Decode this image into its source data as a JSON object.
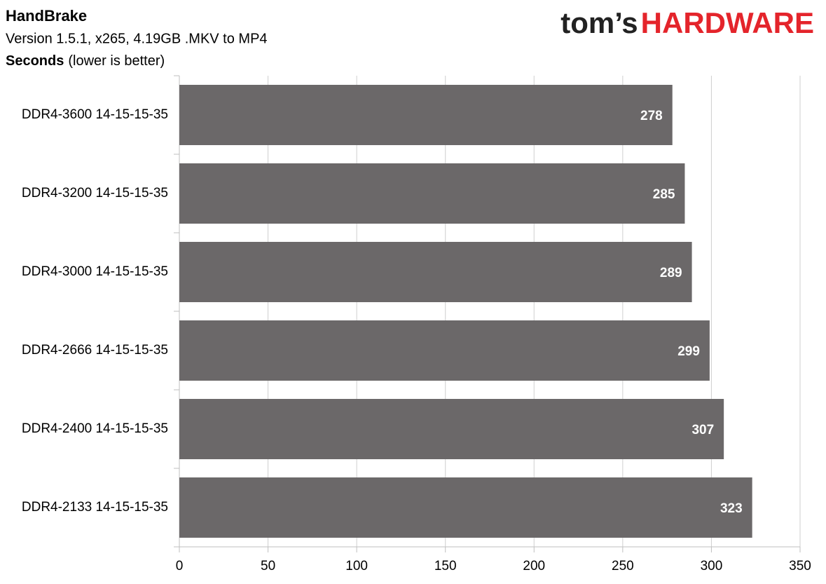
{
  "chart_data": {
    "type": "barh",
    "title": "HandBrake",
    "subtitle": "Version 1.5.1, x265, 4.19GB .MKV to MP4",
    "axis_label": "Seconds",
    "axis_note": "(lower is better)",
    "logo": {
      "left": "tom’s",
      "right": "HARDWARE"
    },
    "categories": [
      "DDR4-3600 14-15-15-35",
      "DDR4-3200 14-15-15-35",
      "DDR4-3000 14-15-15-35",
      "DDR4-2666 14-15-15-35",
      "DDR4-2400 14-15-15-35",
      "DDR4-2133 14-15-15-35"
    ],
    "values": [
      278,
      285,
      289,
      299,
      307,
      323
    ],
    "color": "#6b6869",
    "xlim": [
      0,
      350
    ],
    "xticks": [
      0,
      50,
      100,
      150,
      200,
      250,
      300,
      350
    ],
    "grid": true
  }
}
